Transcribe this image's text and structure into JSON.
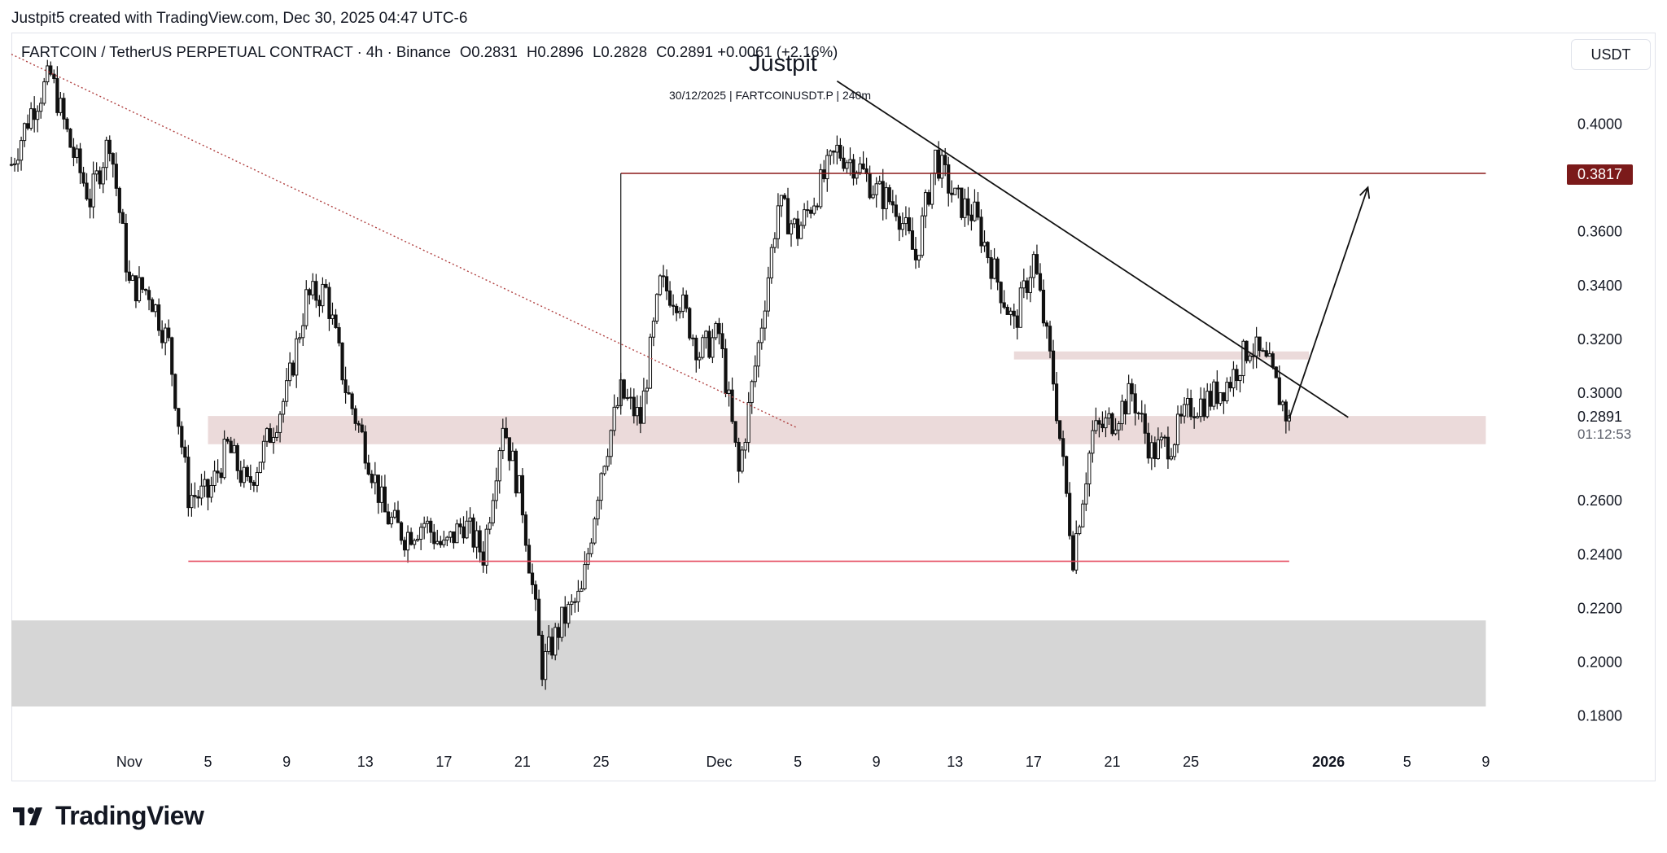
{
  "header": {
    "attribution": "Justpit5 created with TradingView.com, Dec 30, 2025 04:47 UTC-6"
  },
  "legend": {
    "symbol": "FARTCOIN / TetherUS PERPETUAL CONTRACT · 4h · Binance",
    "open": "O0.2831",
    "high": "H0.2896",
    "low": "L0.2828",
    "close": "C0.2891",
    "change": "+0.0061 (+2.16%)"
  },
  "watermark": {
    "title": "Justpit",
    "subtitle": "30/12/2025 | FARTCOINUSDT.P | 240m"
  },
  "toolbar": {
    "currency": "USDT"
  },
  "brand": {
    "name": "TradingView"
  },
  "price_labels": {
    "resistance": "0.3817",
    "current": "0.2891",
    "countdown": "01:12:53"
  },
  "colors": {
    "resistance_line": "#8b1a1a",
    "support_line": "#e5485c",
    "zone_pink": "#e8d3d3",
    "zone_grey": "#d6d6d6",
    "candle": "#111111",
    "badge": "#7b1a1a"
  },
  "chart_data": {
    "type": "candlestick",
    "y_ticks": [
      "0.1800",
      "0.2000",
      "0.2200",
      "0.2400",
      "0.2600",
      "0.3000",
      "0.3200",
      "0.3400",
      "0.3600",
      "0.4000"
    ],
    "ylim": [
      0.172,
      0.428
    ],
    "x_ticks": [
      "Nov",
      "5",
      "9",
      "13",
      "17",
      "21",
      "25",
      "Dec",
      "5",
      "9",
      "13",
      "17",
      "21",
      "25",
      "2026",
      "5",
      "9"
    ],
    "x_tick_dates": [
      "2025-11-01",
      "2025-11-05",
      "2025-11-09",
      "2025-11-13",
      "2025-11-17",
      "2025-11-21",
      "2025-11-25",
      "2025-12-01",
      "2025-12-05",
      "2025-12-09",
      "2025-12-13",
      "2025-12-17",
      "2025-12-21",
      "2025-12-25",
      "2026-01-01",
      "2026-01-05",
      "2026-01-09"
    ],
    "interval": "4h",
    "close_path": [
      [
        "2025-10-26",
        0.385
      ],
      [
        "2025-10-27",
        0.405
      ],
      [
        "2025-10-28",
        0.418
      ],
      [
        "2025-10-29",
        0.392
      ],
      [
        "2025-10-30",
        0.372
      ],
      [
        "2025-10-31",
        0.395
      ],
      [
        "2025-11-01",
        0.34
      ],
      [
        "2025-11-02",
        0.338
      ],
      [
        "2025-11-03",
        0.318
      ],
      [
        "2025-11-04",
        0.262
      ],
      [
        "2025-11-05",
        0.262
      ],
      [
        "2025-11-06",
        0.28
      ],
      [
        "2025-11-07",
        0.265
      ],
      [
        "2025-11-08",
        0.282
      ],
      [
        "2025-11-09",
        0.3
      ],
      [
        "2025-11-10",
        0.335
      ],
      [
        "2025-11-11",
        0.338
      ],
      [
        "2025-11-12",
        0.302
      ],
      [
        "2025-11-13",
        0.28
      ],
      [
        "2025-11-14",
        0.255
      ],
      [
        "2025-11-15",
        0.247
      ],
      [
        "2025-11-16",
        0.252
      ],
      [
        "2025-11-17",
        0.242
      ],
      [
        "2025-11-18",
        0.252
      ],
      [
        "2025-11-19",
        0.24
      ],
      [
        "2025-11-20",
        0.29
      ],
      [
        "2025-11-21",
        0.258
      ],
      [
        "2025-11-22",
        0.198
      ],
      [
        "2025-11-23",
        0.215
      ],
      [
        "2025-11-24",
        0.225
      ],
      [
        "2025-11-25",
        0.272
      ],
      [
        "2025-11-26",
        0.3
      ],
      [
        "2025-11-27",
        0.29
      ],
      [
        "2025-11-28",
        0.34
      ],
      [
        "2025-11-29",
        0.335
      ],
      [
        "2025-11-30",
        0.315
      ],
      [
        "2025-12-01",
        0.322
      ],
      [
        "2025-12-02",
        0.27
      ],
      [
        "2025-12-03",
        0.318
      ],
      [
        "2025-12-04",
        0.37
      ],
      [
        "2025-12-05",
        0.36
      ],
      [
        "2025-12-06",
        0.375
      ],
      [
        "2025-12-07",
        0.39
      ],
      [
        "2025-12-08",
        0.385
      ],
      [
        "2025-12-09",
        0.375
      ],
      [
        "2025-12-10",
        0.37
      ],
      [
        "2025-12-11",
        0.35
      ],
      [
        "2025-12-12",
        0.388
      ],
      [
        "2025-12-13",
        0.372
      ],
      [
        "2025-12-14",
        0.366
      ],
      [
        "2025-12-15",
        0.345
      ],
      [
        "2025-12-16",
        0.325
      ],
      [
        "2025-12-17",
        0.35
      ],
      [
        "2025-12-18",
        0.305
      ],
      [
        "2025-12-19",
        0.24
      ],
      [
        "2025-12-20",
        0.285
      ],
      [
        "2025-12-21",
        0.29
      ],
      [
        "2025-12-22",
        0.3
      ],
      [
        "2025-12-23",
        0.278
      ],
      [
        "2025-12-24",
        0.282
      ],
      [
        "2025-12-25",
        0.295
      ],
      [
        "2025-12-26",
        0.298
      ],
      [
        "2025-12-27",
        0.305
      ],
      [
        "2025-12-28",
        0.318
      ],
      [
        "2025-12-29",
        0.309
      ],
      [
        "2025-12-30",
        0.2891
      ]
    ],
    "zones": [
      {
        "from": "2025-11-05",
        "to": "2026-01-09",
        "low": 0.281,
        "high": 0.2915,
        "color": "pink"
      },
      {
        "from": "2025-12-16",
        "to": "2025-12-31",
        "low": 0.3125,
        "high": 0.3155,
        "color": "pink"
      },
      {
        "from": "2025-10-26",
        "to": "2026-01-09",
        "low": 0.1835,
        "high": 0.2155,
        "color": "grey"
      }
    ],
    "horizontal_lines": [
      {
        "from": "2025-11-26",
        "to": "2026-01-09",
        "price": 0.3817,
        "color": "resistance"
      },
      {
        "from": "2025-11-04",
        "to": "2025-12-30",
        "price": 0.2375,
        "color": "support"
      }
    ],
    "trendlines": [
      {
        "from": [
          "2025-10-26",
          0.426
        ],
        "to": [
          "2025-12-05",
          0.287
        ],
        "style": "dotted"
      },
      {
        "from": [
          "2025-12-07",
          0.416
        ],
        "to": [
          "2026-01-02",
          0.291
        ],
        "style": "solid"
      }
    ],
    "projection_arrow": {
      "from": [
        "2025-12-30",
        0.2905
      ],
      "to": [
        "2026-01-03",
        0.3765
      ]
    }
  }
}
